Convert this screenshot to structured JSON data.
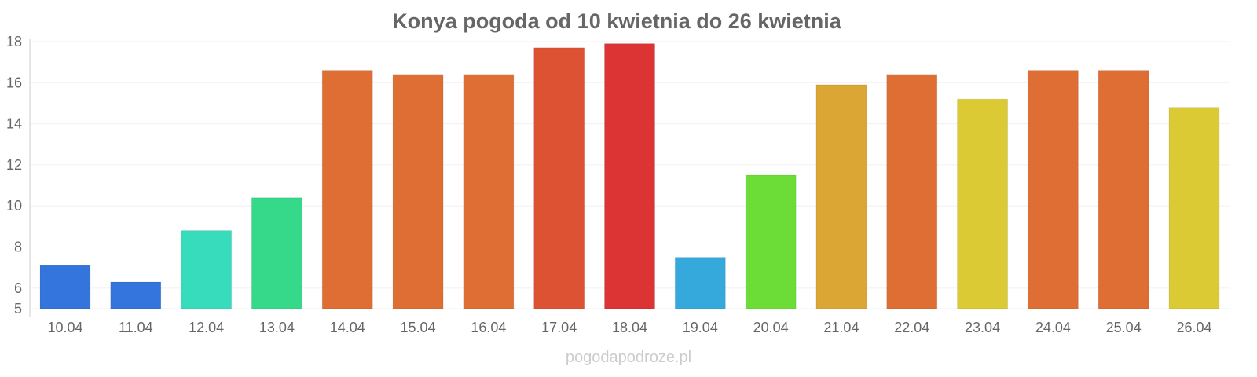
{
  "chart_data": {
    "type": "bar",
    "title": "Konya pogoda od 10 kwietnia do 26 kwietnia",
    "xlabel": "",
    "ylabel": "",
    "ylim": [
      5,
      18
    ],
    "yticks": [
      5,
      6,
      8,
      10,
      12,
      14,
      16,
      18
    ],
    "grid": true,
    "legend": "none",
    "categories": [
      "10.04",
      "11.04",
      "12.04",
      "13.04",
      "14.04",
      "15.04",
      "16.04",
      "17.04",
      "18.04",
      "19.04",
      "20.04",
      "21.04",
      "22.04",
      "23.04",
      "24.04",
      "25.04",
      "26.04"
    ],
    "values": [
      7.1,
      6.3,
      8.8,
      10.4,
      16.6,
      16.4,
      16.4,
      17.7,
      17.9,
      7.5,
      11.5,
      15.9,
      16.4,
      15.2,
      16.6,
      16.6,
      14.8
    ],
    "colors": [
      "#3375dc",
      "#3375dc",
      "#36dcbb",
      "#36d98a",
      "#de6e33",
      "#de6e33",
      "#de6e33",
      "#dd5233",
      "#dc3434",
      "#36a9dc",
      "#6cdc36",
      "#dca634",
      "#de6e33",
      "#dcca34",
      "#de6e33",
      "#de6e33",
      "#dcca34"
    ]
  },
  "footer": "pogodapodroze.pl"
}
